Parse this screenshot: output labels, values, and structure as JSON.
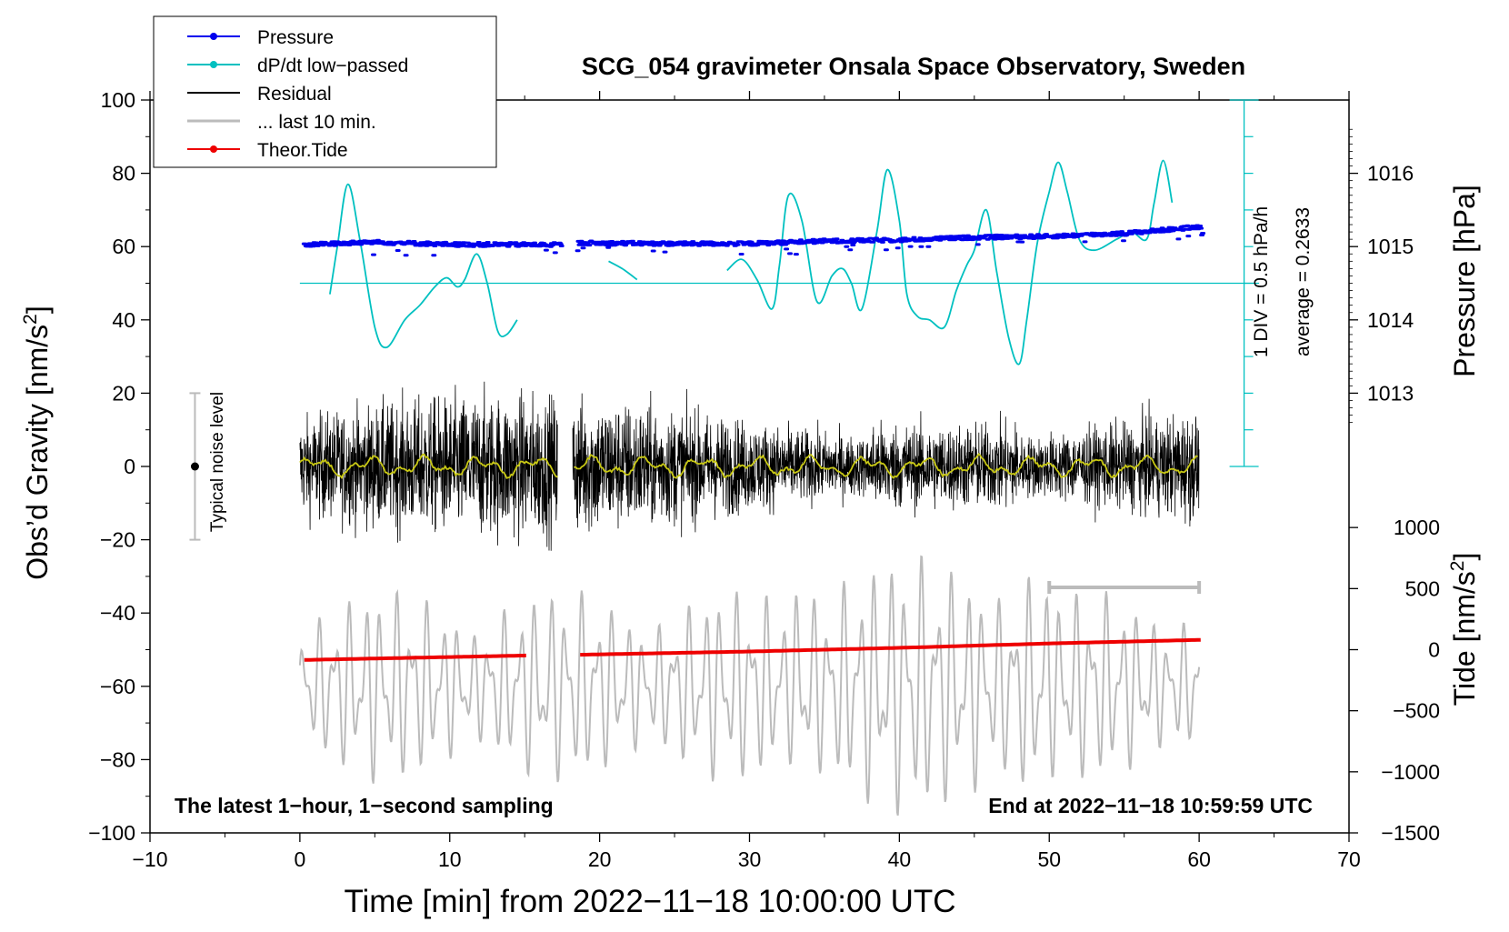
{
  "chart_data": {
    "type": "line",
    "title": "SCG_054 gravimeter Onsala Space Observatory, Sweden",
    "xlabel": "Time [min] from 2022−11−18 10:00:00 UTC",
    "ylabel_left": "Obs’d Gravity [nm/s",
    "ylabel_left_sup": "2",
    "ylabel_left_tail": "]",
    "ylabel_pressure": "Pressure [hPa]",
    "ylabel_tide": "Tide [nm/s",
    "ylabel_tide_sup": "2",
    "ylabel_tide_tail": "]",
    "xlim": [
      -10,
      70
    ],
    "ylim": [
      -100,
      100
    ],
    "x_ticks": [
      -10,
      0,
      10,
      20,
      30,
      40,
      50,
      60,
      70
    ],
    "x_tick_labels": [
      "−10",
      "0",
      "10",
      "20",
      "30",
      "40",
      "50",
      "60",
      "70"
    ],
    "y_ticks": [
      -100,
      -80,
      -60,
      -40,
      -20,
      0,
      20,
      40,
      60,
      80,
      100
    ],
    "y_tick_labels": [
      "−100",
      "−80",
      "−60",
      "−40",
      "−20",
      "0",
      "20",
      "40",
      "60",
      "80",
      "100"
    ],
    "pressure_ticks": [
      1013,
      1014,
      1015,
      1016
    ],
    "pressure_tick_labels": [
      "1013",
      "1014",
      "1015",
      "1016"
    ],
    "pressure_axis": {
      "value_at_gravity_60": 1015,
      "hpa_per_20_units": 1
    },
    "tide_ticks": [
      1000,
      500,
      0,
      -500,
      -1000,
      -1500
    ],
    "tide_tick_labels": [
      "1000",
      "500",
      "0",
      "−500",
      "−1000",
      "−1500"
    ],
    "tide_axis": {
      "value_at_gravity_minus_100": -1500,
      "nms2_per_unit": 30
    },
    "legend": [
      {
        "label": "Pressure",
        "color": "#0000ee",
        "marker": true
      },
      {
        "label": "dP/dt low−passed",
        "color": "#00c0c0",
        "marker": true
      },
      {
        "label": "Residual",
        "color": "#000000",
        "marker": false
      },
      {
        "label": "... last 10 min.",
        "color": "#bbbbbb",
        "marker": false
      },
      {
        "label": "Theor.Tide",
        "color": "#ee0000",
        "marker": true
      }
    ],
    "legend_position": "top-left",
    "annotations": {
      "noise_label": "Typical noise level",
      "noise_range": [
        -20,
        20
      ],
      "noise_x": -7,
      "dpdt_scale": "1 DIV = 0.5 hPa/h",
      "dpdt_average": "average = 0.2633",
      "dpdt_zero_level": 50,
      "dpdt_scale_x": 63,
      "dpdt_scale_range": [
        0,
        100
      ],
      "bottom_left": "The latest 1−hour, 1−second sampling",
      "bottom_right": "End at 2022−11−18 10:59:59 UTC",
      "last10_bar": [
        50,
        60
      ],
      "last10_bar_y": -33
    },
    "series": [
      {
        "name": "Pressure",
        "color": "#0000ee",
        "gap": [
          17.5,
          18.5
        ],
        "points": [
          [
            0.3,
            60.5
          ],
          [
            5,
            61.2
          ],
          [
            10,
            60.6
          ],
          [
            17.5,
            60.5
          ],
          [
            18.5,
            61
          ],
          [
            25,
            60.8
          ],
          [
            30,
            60.8
          ],
          [
            35,
            61.5
          ],
          [
            40,
            61.8
          ],
          [
            45,
            62.5
          ],
          [
            50,
            62.8
          ],
          [
            55,
            63.6
          ],
          [
            60.3,
            65.5
          ]
        ]
      },
      {
        "name": "dP/dt low−passed",
        "color": "#00c0c0",
        "segments": [
          [
            [
              2,
              47
            ],
            [
              2.5,
              60
            ],
            [
              3.2,
              77
            ],
            [
              4,
              62
            ],
            [
              5,
              38
            ],
            [
              5.8,
              32.5
            ],
            [
              7,
              40
            ],
            [
              8,
              44
            ],
            [
              9,
              49
            ],
            [
              9.8,
              51.5
            ],
            [
              10.5,
              49
            ],
            [
              11,
              51
            ],
            [
              11.8,
              58
            ],
            [
              12.5,
              50
            ],
            [
              13.2,
              37
            ],
            [
              13.8,
              36
            ],
            [
              14.5,
              40
            ]
          ],
          [
            [
              20.6,
              56
            ],
            [
              21.5,
              54
            ],
            [
              22.5,
              51
            ]
          ],
          [
            [
              28.5,
              53.5
            ],
            [
              29.5,
              56.5
            ],
            [
              30.5,
              51
            ],
            [
              31.5,
              43
            ],
            [
              32,
              55
            ],
            [
              32.6,
              74
            ],
            [
              33.5,
              67
            ],
            [
              34.5,
              45
            ],
            [
              35.5,
              52
            ],
            [
              36.2,
              54
            ],
            [
              36.8,
              50
            ],
            [
              37.5,
              43
            ],
            [
              38.5,
              64
            ],
            [
              39.2,
              81
            ],
            [
              40,
              67
            ],
            [
              40.5,
              47
            ],
            [
              41.2,
              41
            ],
            [
              42,
              40
            ],
            [
              43,
              38
            ],
            [
              43.8,
              48
            ],
            [
              44.5,
              55
            ],
            [
              45,
              59
            ],
            [
              45.8,
              70
            ],
            [
              46.5,
              53
            ],
            [
              47.3,
              35
            ],
            [
              48,
              28
            ],
            [
              48.5,
              40
            ],
            [
              49.2,
              61
            ],
            [
              50,
              75
            ],
            [
              50.6,
              83
            ],
            [
              51.2,
              75
            ],
            [
              52,
              62
            ],
            [
              53,
              59
            ],
            [
              54.5,
              62
            ],
            [
              55.5,
              64
            ],
            [
              56.5,
              62
            ],
            [
              57,
              72
            ],
            [
              57.6,
              83.5
            ],
            [
              58.2,
              72
            ]
          ]
        ]
      },
      {
        "name": "Residual",
        "color": "#000000",
        "x_range": [
          0,
          60
        ],
        "gap": [
          17.2,
          18.2
        ],
        "amplitude": 26,
        "mean": 0
      },
      {
        "name": "Residual smoothed",
        "color": "#c8c814",
        "mean": 0
      },
      {
        "name": "... last 10 min.",
        "color": "#bbbbbb",
        "x_range": [
          0,
          60
        ],
        "mean": -60,
        "amplitude": 30
      },
      {
        "name": "Theor.Tide",
        "color": "#ee0000",
        "gap": [
          15.2,
          18.5
        ],
        "points": [
          [
            0.3,
            -52.8
          ],
          [
            15,
            -51.6
          ],
          [
            18.5,
            -51.4
          ],
          [
            30,
            -50.5
          ],
          [
            40,
            -49.5
          ],
          [
            50,
            -48.3
          ],
          [
            60.3,
            -47.3
          ]
        ]
      }
    ]
  }
}
